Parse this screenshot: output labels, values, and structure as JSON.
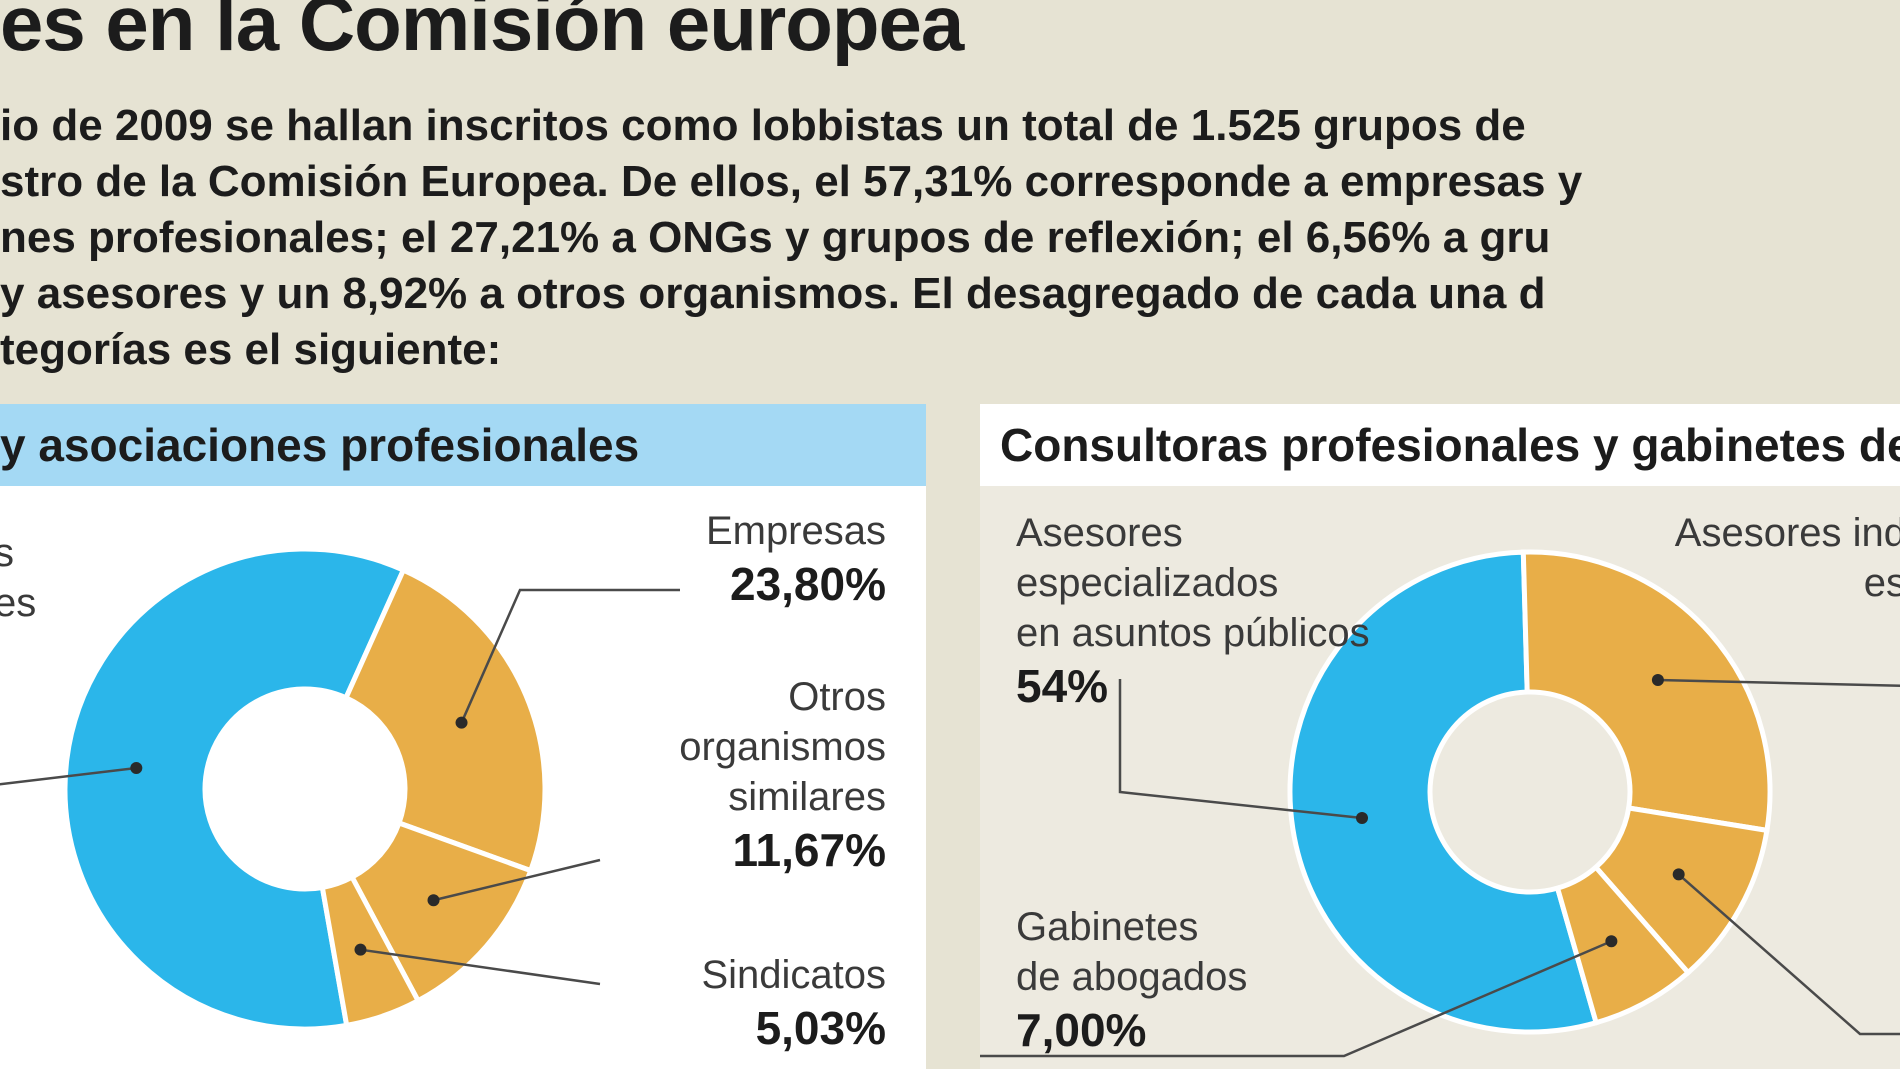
{
  "title": "es en la Comisión europea",
  "intro_lines": [
    "io de 2009 se hallan inscritos como lobbistas un total de 1.525 grupos de",
    "stro de la Comisión Europea. De ellos, el 57,31% corresponde a empresas y",
    "nes profesionales; el 27,21% a ONGs y grupos de reflexión; el 6,56% a gru",
    " y asesores y un 8,92% a otros organismos. El desagregado de cada una d",
    "tegorías es el siguiente:"
  ],
  "panels": {
    "left": {
      "header": "y asociaciones profesionales",
      "clipped_label": [
        "s",
        "es"
      ],
      "labels": {
        "empresas": {
          "name": "Empresas",
          "pct": "23,80%"
        },
        "otros": {
          "name_lines": [
            "Otros",
            "organismos",
            "similares"
          ],
          "pct": "11,67%"
        },
        "sindicatos": {
          "name": "Sindicatos",
          "pct": "5,03%"
        }
      }
    },
    "right": {
      "header": "Consultoras profesionales y gabinetes de",
      "labels": {
        "asesores": {
          "name_lines": [
            "Asesores",
            "especializados",
            "en asuntos públicos"
          ],
          "pct": "54%"
        },
        "asesores_ind": {
          "name_lines": [
            "Asesores ind",
            "es"
          ]
        },
        "gabinetes": {
          "name_lines": [
            "Gabinetes",
            "de abogados"
          ],
          "pct": "7,00%"
        }
      }
    }
  },
  "colors": {
    "blue": "#2bb6ea",
    "gold": "#e8ae48",
    "leader": "#4a4a4a"
  },
  "chart_data": [
    {
      "type": "pie",
      "title": "y asociaciones profesionales",
      "categories": [
        "",
        "Empresas",
        "Otros organismos similares",
        "Sindicatos"
      ],
      "values": [
        59.5,
        23.8,
        11.67,
        5.03
      ],
      "value_labels": [
        "",
        "23,80%",
        "11,67%",
        "5,03%"
      ],
      "colors": [
        "#2bb6ea",
        "#e8ae48",
        "#e8ae48",
        "#e8ae48"
      ]
    },
    {
      "type": "pie",
      "title": "Consultoras profesionales y gabinetes de",
      "categories": [
        "Asesores especializados en asuntos públicos",
        "Asesores ind…",
        "",
        "Gabinetes de abogados"
      ],
      "values": [
        54,
        28,
        11,
        7
      ],
      "value_labels": [
        "54%",
        "",
        "",
        "7,00%"
      ],
      "colors": [
        "#2bb6ea",
        "#e8ae48",
        "#e8ae48",
        "#e8ae48"
      ]
    }
  ]
}
